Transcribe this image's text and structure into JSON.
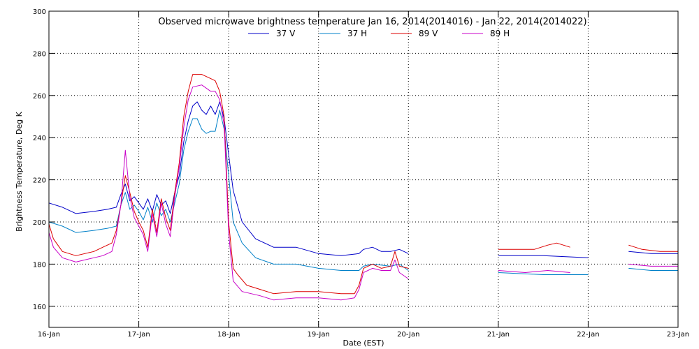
{
  "chart_data": {
    "type": "line",
    "title": "Observed microwave brightness temperature Jan 16, 2014(2014016) - Jan 22, 2014(2014022)",
    "xlabel": "Date (EST)",
    "ylabel": "Brightness Temperature, Deg K",
    "xlim": [
      0,
      7
    ],
    "ylim": [
      150,
      300
    ],
    "x_ticks": [
      {
        "v": 0,
        "label": "16-Jan"
      },
      {
        "v": 1,
        "label": "17-Jan"
      },
      {
        "v": 2,
        "label": "18-Jan"
      },
      {
        "v": 3,
        "label": "19-Jan"
      },
      {
        "v": 4,
        "label": "20-Jan"
      },
      {
        "v": 5,
        "label": "21-Jan"
      },
      {
        "v": 6,
        "label": "22-Jan"
      },
      {
        "v": 7,
        "label": "23-Jan"
      }
    ],
    "y_ticks": [
      160,
      180,
      200,
      220,
      240,
      260,
      280,
      300
    ],
    "grid": true,
    "legend": "top-center",
    "series": [
      {
        "name": "37 V",
        "color": "#0000c8",
        "segments": [
          [
            [
              0,
              209
            ],
            [
              0.15,
              207
            ],
            [
              0.3,
              204
            ],
            [
              0.5,
              205
            ],
            [
              0.65,
              206
            ],
            [
              0.75,
              207
            ],
            [
              0.8,
              213
            ],
            [
              0.85,
              218
            ],
            [
              0.9,
              210
            ],
            [
              0.95,
              212
            ],
            [
              1.0,
              209
            ],
            [
              1.05,
              206
            ],
            [
              1.1,
              211
            ],
            [
              1.15,
              205
            ],
            [
              1.2,
              213
            ],
            [
              1.25,
              208
            ],
            [
              1.3,
              210
            ],
            [
              1.35,
              204
            ],
            [
              1.4,
              214
            ],
            [
              1.45,
              222
            ],
            [
              1.5,
              238
            ],
            [
              1.55,
              248
            ],
            [
              1.6,
              255
            ],
            [
              1.65,
              257
            ],
            [
              1.7,
              253
            ],
            [
              1.75,
              251
            ],
            [
              1.8,
              255
            ],
            [
              1.85,
              251
            ],
            [
              1.9,
              257
            ],
            [
              1.95,
              249
            ],
            [
              2.0,
              232
            ],
            [
              2.05,
              215
            ],
            [
              2.15,
              200
            ],
            [
              2.3,
              192
            ],
            [
              2.5,
              188
            ],
            [
              2.75,
              188
            ],
            [
              3.0,
              185
            ],
            [
              3.25,
              184
            ],
            [
              3.45,
              185
            ],
            [
              3.5,
              187
            ],
            [
              3.6,
              188
            ],
            [
              3.7,
              186
            ],
            [
              3.8,
              186
            ],
            [
              3.9,
              187
            ],
            [
              4.0,
              185
            ]
          ],
          [
            [
              5.0,
              184
            ],
            [
              5.5,
              184
            ],
            [
              6.0,
              183
            ]
          ],
          [
            [
              6.45,
              186
            ],
            [
              6.7,
              185
            ],
            [
              7.0,
              185
            ]
          ]
        ]
      },
      {
        "name": "37 H",
        "color": "#0080c8",
        "segments": [
          [
            [
              0,
              200
            ],
            [
              0.15,
              198
            ],
            [
              0.3,
              195
            ],
            [
              0.5,
              196
            ],
            [
              0.65,
              197
            ],
            [
              0.75,
              198
            ],
            [
              0.8,
              208
            ],
            [
              0.85,
              214
            ],
            [
              0.9,
              206
            ],
            [
              0.95,
              208
            ],
            [
              1.0,
              205
            ],
            [
              1.05,
              201
            ],
            [
              1.1,
              207
            ],
            [
              1.15,
              200
            ],
            [
              1.2,
              209
            ],
            [
              1.25,
              203
            ],
            [
              1.3,
              206
            ],
            [
              1.35,
              200
            ],
            [
              1.4,
              209
            ],
            [
              1.45,
              218
            ],
            [
              1.5,
              234
            ],
            [
              1.55,
              243
            ],
            [
              1.6,
              249
            ],
            [
              1.65,
              249
            ],
            [
              1.7,
              244
            ],
            [
              1.75,
              242
            ],
            [
              1.8,
              243
            ],
            [
              1.85,
              243
            ],
            [
              1.9,
              253
            ],
            [
              1.95,
              244
            ],
            [
              2.0,
              222
            ],
            [
              2.05,
              200
            ],
            [
              2.15,
              190
            ],
            [
              2.3,
              183
            ],
            [
              2.5,
              180
            ],
            [
              2.75,
              180
            ],
            [
              3.0,
              178
            ],
            [
              3.25,
              177
            ],
            [
              3.45,
              177
            ],
            [
              3.5,
              179
            ],
            [
              3.6,
              180
            ],
            [
              3.8,
              179
            ],
            [
              3.9,
              180
            ],
            [
              4.0,
              177
            ]
          ],
          [
            [
              5.0,
              176
            ],
            [
              5.5,
              175
            ],
            [
              6.0,
              175
            ]
          ],
          [
            [
              6.45,
              178
            ],
            [
              6.7,
              177
            ],
            [
              7.0,
              177
            ]
          ]
        ]
      },
      {
        "name": "89 V",
        "color": "#dc0000",
        "segments": [
          [
            [
              0,
              199
            ],
            [
              0.05,
              192
            ],
            [
              0.15,
              186
            ],
            [
              0.3,
              184
            ],
            [
              0.5,
              186
            ],
            [
              0.6,
              188
            ],
            [
              0.7,
              190
            ],
            [
              0.75,
              196
            ],
            [
              0.8,
              208
            ],
            [
              0.85,
              222
            ],
            [
              0.9,
              214
            ],
            [
              0.95,
              205
            ],
            [
              1.0,
              200
            ],
            [
              1.05,
              196
            ],
            [
              1.1,
              188
            ],
            [
              1.15,
              206
            ],
            [
              1.2,
              195
            ],
            [
              1.25,
              211
            ],
            [
              1.3,
              202
            ],
            [
              1.35,
              196
            ],
            [
              1.4,
              214
            ],
            [
              1.45,
              228
            ],
            [
              1.5,
              250
            ],
            [
              1.55,
              262
            ],
            [
              1.6,
              270
            ],
            [
              1.7,
              270
            ],
            [
              1.8,
              268
            ],
            [
              1.85,
              267
            ],
            [
              1.9,
              262
            ],
            [
              1.95,
              250
            ],
            [
              2.0,
              200
            ],
            [
              2.05,
              178
            ],
            [
              2.1,
              175
            ],
            [
              2.2,
              170
            ],
            [
              2.35,
              168
            ],
            [
              2.5,
              166
            ],
            [
              2.75,
              167
            ],
            [
              3.0,
              167
            ],
            [
              3.25,
              166
            ],
            [
              3.4,
              166
            ],
            [
              3.45,
              170
            ],
            [
              3.5,
              178
            ],
            [
              3.6,
              180
            ],
            [
              3.7,
              178
            ],
            [
              3.8,
              179
            ],
            [
              3.85,
              186
            ],
            [
              3.9,
              179
            ],
            [
              4.0,
              178
            ]
          ],
          [
            [
              5.0,
              187
            ],
            [
              5.4,
              187
            ],
            [
              5.55,
              189
            ],
            [
              5.65,
              190
            ],
            [
              5.8,
              188
            ]
          ],
          [
            [
              6.45,
              189
            ],
            [
              6.6,
              187
            ],
            [
              6.8,
              186
            ],
            [
              7.0,
              186
            ]
          ]
        ]
      },
      {
        "name": "89 H",
        "color": "#c800c8",
        "segments": [
          [
            [
              0,
              195
            ],
            [
              0.05,
              188
            ],
            [
              0.15,
              183
            ],
            [
              0.3,
              181
            ],
            [
              0.5,
              183
            ],
            [
              0.6,
              184
            ],
            [
              0.7,
              186
            ],
            [
              0.75,
              194
            ],
            [
              0.8,
              208
            ],
            [
              0.85,
              234
            ],
            [
              0.9,
              212
            ],
            [
              0.95,
              202
            ],
            [
              1.0,
              198
            ],
            [
              1.05,
              194
            ],
            [
              1.1,
              186
            ],
            [
              1.15,
              204
            ],
            [
              1.2,
              193
            ],
            [
              1.25,
              209
            ],
            [
              1.3,
              199
            ],
            [
              1.35,
              193
            ],
            [
              1.4,
              212
            ],
            [
              1.45,
              226
            ],
            [
              1.5,
              245
            ],
            [
              1.55,
              258
            ],
            [
              1.6,
              264
            ],
            [
              1.7,
              265
            ],
            [
              1.8,
              262
            ],
            [
              1.85,
              262
            ],
            [
              1.9,
              258
            ],
            [
              1.95,
              246
            ],
            [
              2.0,
              195
            ],
            [
              2.05,
              172
            ],
            [
              2.15,
              167
            ],
            [
              2.35,
              165
            ],
            [
              2.5,
              163
            ],
            [
              2.75,
              164
            ],
            [
              3.0,
              164
            ],
            [
              3.25,
              163
            ],
            [
              3.4,
              164
            ],
            [
              3.45,
              168
            ],
            [
              3.5,
              176
            ],
            [
              3.6,
              178
            ],
            [
              3.7,
              177
            ],
            [
              3.8,
              177
            ],
            [
              3.85,
              182
            ],
            [
              3.9,
              176
            ],
            [
              4.0,
              173
            ]
          ],
          [
            [
              5.0,
              177
            ],
            [
              5.3,
              176
            ],
            [
              5.55,
              177
            ],
            [
              5.8,
              176
            ]
          ],
          [
            [
              6.45,
              180
            ],
            [
              6.7,
              179
            ],
            [
              7.0,
              179
            ]
          ]
        ]
      }
    ]
  }
}
